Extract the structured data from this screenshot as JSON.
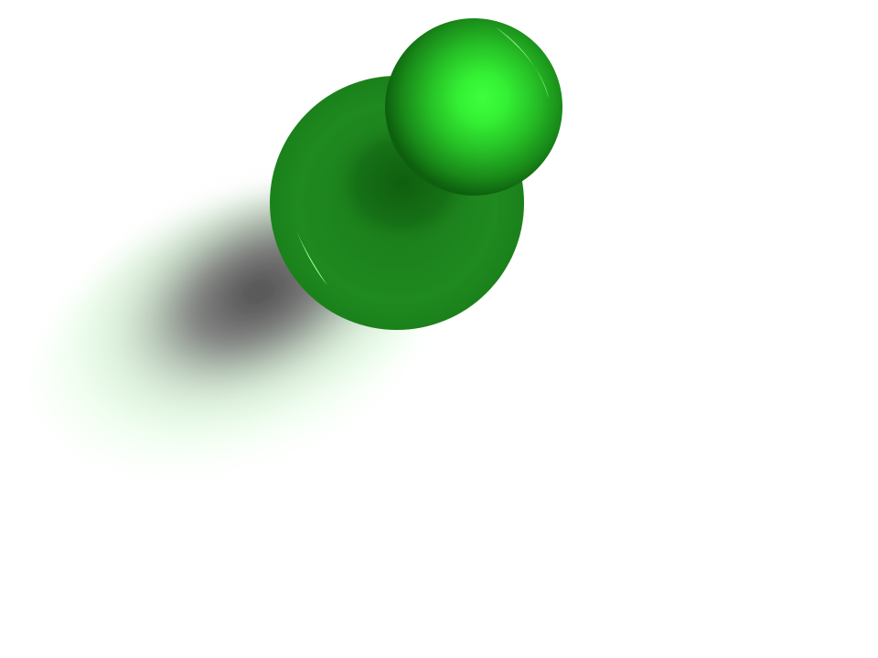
{
  "scene": {
    "subject": "pushpin-icon",
    "background_color": "#ffffff",
    "colors": {
      "pin_base": "#1f8a1f",
      "pin_base_dark": "#126312",
      "pin_head_light": "#3cff3c",
      "pin_head_mid": "#24b824",
      "pin_head_dark": "#0f6a0f",
      "highlight": "#b9ffb0",
      "shadow_core": "#4a4a4a",
      "shadow_tint": "#7dff7d"
    }
  }
}
